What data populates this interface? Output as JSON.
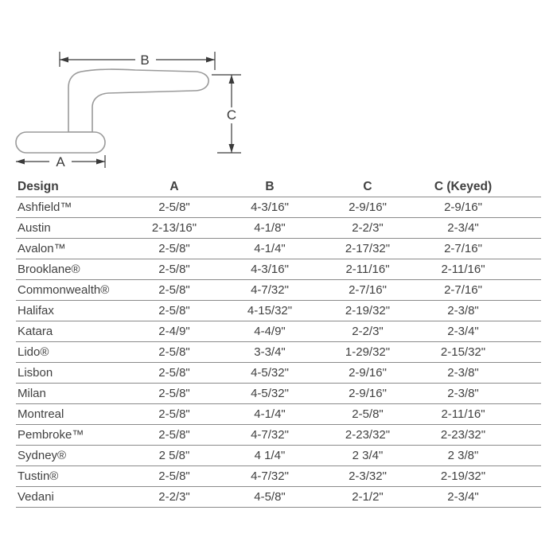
{
  "diagram": {
    "labels": {
      "a": "A",
      "b": "B",
      "c": "C"
    }
  },
  "table": {
    "headers": [
      "Design",
      "A",
      "B",
      "C",
      "C (Keyed)"
    ],
    "rows": [
      {
        "design": "Ashfield™",
        "values": [
          "2-5/8\"",
          "4-3/16\"",
          "2-9/16\"",
          "2-9/16\""
        ]
      },
      {
        "design": "Austin",
        "values": [
          "2-13/16\"",
          "4-1/8\"",
          "2-2/3\"",
          "2-3/4\""
        ]
      },
      {
        "design": "Avalon™",
        "values": [
          "2-5/8\"",
          "4-1/4\"",
          "2-17/32\"",
          "2-7/16\""
        ]
      },
      {
        "design": "Brooklane®",
        "values": [
          "2-5/8\"",
          "4-3/16\"",
          "2-11/16\"",
          "2-11/16\""
        ]
      },
      {
        "design": "Commonwealth®",
        "values": [
          "2-5/8\"",
          "4-7/32\"",
          "2-7/16\"",
          "2-7/16\""
        ]
      },
      {
        "design": "Halifax",
        "values": [
          "2-5/8\"",
          "4-15/32\"",
          "2-19/32\"",
          "2-3/8\""
        ]
      },
      {
        "design": "Katara",
        "values": [
          "2-4/9\"",
          "4-4/9\"",
          "2-2/3\"",
          "2-3/4\""
        ]
      },
      {
        "design": "Lido®",
        "values": [
          "2-5/8\"",
          "3-3/4\"",
          "1-29/32\"",
          "2-15/32\""
        ]
      },
      {
        "design": "Lisbon",
        "values": [
          "2-5/8\"",
          "4-5/32\"",
          "2-9/16\"",
          "2-3/8\""
        ]
      },
      {
        "design": "Milan",
        "values": [
          "2-5/8\"",
          "4-5/32\"",
          "2-9/16\"",
          "2-3/8\""
        ]
      },
      {
        "design": "Montreal",
        "values": [
          "2-5/8\"",
          "4-1/4\"",
          "2-5/8\"",
          "2-11/16\""
        ]
      },
      {
        "design": "Pembroke™",
        "values": [
          "2-5/8\"",
          "4-7/32\"",
          "2-23/32\"",
          "2-23/32\""
        ]
      },
      {
        "design": "Sydney®",
        "values": [
          "2 5/8\"",
          "4 1/4\"",
          "2 3/4\"",
          "2 3/8\""
        ]
      },
      {
        "design": "Tustin®",
        "values": [
          "2-5/8\"",
          "4-7/32\"",
          "2-3/32\"",
          "2-19/32\""
        ]
      },
      {
        "design": "Vedani",
        "values": [
          "2-2/3\"",
          "4-5/8\"",
          "2-1/2\"",
          "2-3/4\""
        ]
      }
    ]
  },
  "colors": {
    "text": "#404040",
    "rule": "#8a8a8a",
    "drawing_outline": "#9a9a9a",
    "dimension_line": "#3a3a3a"
  }
}
